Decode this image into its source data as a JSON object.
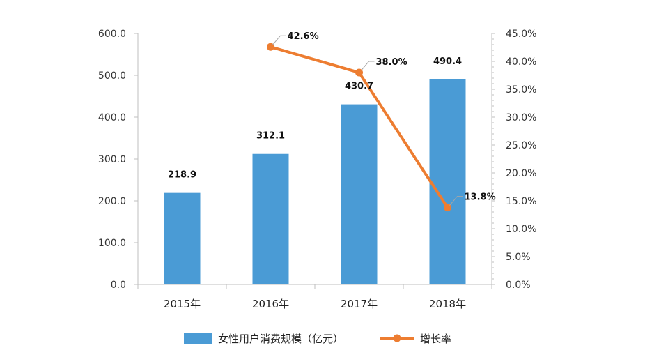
{
  "chart_data": {
    "type": "bar",
    "categories": [
      "2015年",
      "2016年",
      "2017年",
      "2018年"
    ],
    "series": [
      {
        "name": "女性用户消费规模（亿元）",
        "type": "bar",
        "axis": "left",
        "color": "#4A9BD5",
        "values": [
          218.9,
          312.1,
          430.7,
          490.4
        ],
        "labels": [
          "218.9",
          "312.1",
          "430.7",
          "490.4"
        ]
      },
      {
        "name": "增长率",
        "type": "line",
        "axis": "right",
        "color": "#ED7D31",
        "values": [
          null,
          42.6,
          38.0,
          13.8
        ],
        "labels": [
          null,
          "42.6%",
          "38.0%",
          "13.8%"
        ]
      }
    ],
    "y_left": {
      "min": 0,
      "max": 600,
      "step": 100,
      "tick_labels": [
        "0.0",
        "100.0",
        "200.0",
        "300.0",
        "400.0",
        "500.0",
        "600.0"
      ]
    },
    "y_right": {
      "min": 0,
      "max": 45,
      "step": 5,
      "tick_labels": [
        "0.0%",
        "5.0%",
        "10.0%",
        "15.0%",
        "20.0%",
        "25.0%",
        "30.0%",
        "35.0%",
        "40.0%",
        "45.0%"
      ]
    },
    "grid": false,
    "legend": "bottom"
  }
}
